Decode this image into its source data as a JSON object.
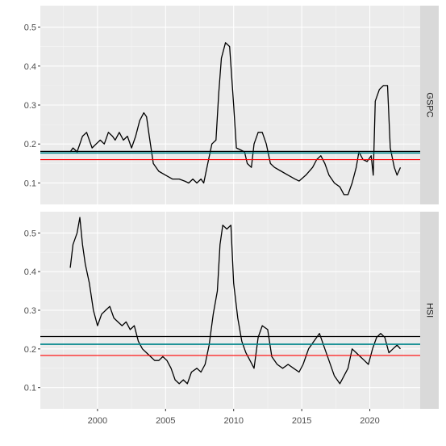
{
  "chart_data": {
    "type": "line",
    "x_ticks": [
      2000,
      2005,
      2010,
      2015,
      2020
    ],
    "y_ticks": [
      0.1,
      0.2,
      0.3,
      0.4,
      0.5
    ],
    "xlim": [
      1995.8,
      2023.7
    ],
    "ylim": [
      0.045,
      0.555
    ],
    "grid": true,
    "reference_line_colors": {
      "upper": "#000000",
      "middle": "#00868B",
      "lower": "#FF0000"
    },
    "panels": [
      {
        "strip": "GSPC",
        "reference_lines": {
          "upper": 0.181,
          "middle": 0.177,
          "lower": 0.16
        },
        "points": [
          [
            1998.0,
            0.18
          ],
          [
            1998.2,
            0.19
          ],
          [
            1998.5,
            0.18
          ],
          [
            1998.7,
            0.2
          ],
          [
            1998.9,
            0.22
          ],
          [
            1999.2,
            0.23
          ],
          [
            1999.6,
            0.19
          ],
          [
            1999.9,
            0.2
          ],
          [
            2000.2,
            0.21
          ],
          [
            2000.5,
            0.2
          ],
          [
            2000.8,
            0.23
          ],
          [
            2001.1,
            0.22
          ],
          [
            2001.3,
            0.21
          ],
          [
            2001.6,
            0.23
          ],
          [
            2001.9,
            0.21
          ],
          [
            2002.2,
            0.22
          ],
          [
            2002.5,
            0.19
          ],
          [
            2002.8,
            0.22
          ],
          [
            2003.1,
            0.26
          ],
          [
            2003.4,
            0.28
          ],
          [
            2003.6,
            0.27
          ],
          [
            2003.8,
            0.22
          ],
          [
            2004.1,
            0.15
          ],
          [
            2004.5,
            0.13
          ],
          [
            2005.0,
            0.12
          ],
          [
            2005.5,
            0.11
          ],
          [
            2006.0,
            0.11
          ],
          [
            2006.4,
            0.105
          ],
          [
            2006.7,
            0.1
          ],
          [
            2007.0,
            0.11
          ],
          [
            2007.3,
            0.1
          ],
          [
            2007.6,
            0.11
          ],
          [
            2007.8,
            0.1
          ],
          [
            2008.1,
            0.15
          ],
          [
            2008.4,
            0.2
          ],
          [
            2008.7,
            0.21
          ],
          [
            2008.9,
            0.33
          ],
          [
            2009.1,
            0.42
          ],
          [
            2009.4,
            0.46
          ],
          [
            2009.7,
            0.45
          ],
          [
            2010.0,
            0.3
          ],
          [
            2010.2,
            0.19
          ],
          [
            2010.5,
            0.185
          ],
          [
            2010.8,
            0.18
          ],
          [
            2011.0,
            0.15
          ],
          [
            2011.3,
            0.14
          ],
          [
            2011.5,
            0.2
          ],
          [
            2011.8,
            0.23
          ],
          [
            2012.1,
            0.23
          ],
          [
            2012.4,
            0.2
          ],
          [
            2012.7,
            0.15
          ],
          [
            2013.0,
            0.14
          ],
          [
            2013.5,
            0.13
          ],
          [
            2014.0,
            0.12
          ],
          [
            2014.5,
            0.11
          ],
          [
            2014.8,
            0.105
          ],
          [
            2015.3,
            0.12
          ],
          [
            2015.8,
            0.14
          ],
          [
            2016.1,
            0.16
          ],
          [
            2016.4,
            0.17
          ],
          [
            2016.7,
            0.15
          ],
          [
            2017.0,
            0.12
          ],
          [
            2017.4,
            0.1
          ],
          [
            2017.8,
            0.09
          ],
          [
            2018.1,
            0.07
          ],
          [
            2018.4,
            0.07
          ],
          [
            2018.7,
            0.1
          ],
          [
            2019.0,
            0.14
          ],
          [
            2019.2,
            0.18
          ],
          [
            2019.5,
            0.16
          ],
          [
            2019.8,
            0.155
          ],
          [
            2020.1,
            0.17
          ],
          [
            2020.25,
            0.12
          ],
          [
            2020.4,
            0.31
          ],
          [
            2020.7,
            0.34
          ],
          [
            2021.0,
            0.35
          ],
          [
            2021.3,
            0.35
          ],
          [
            2021.5,
            0.19
          ],
          [
            2021.8,
            0.14
          ],
          [
            2022.0,
            0.12
          ],
          [
            2022.25,
            0.14
          ]
        ]
      },
      {
        "strip": "HSI",
        "reference_lines": {
          "upper": 0.232,
          "middle": 0.212,
          "lower": 0.183
        },
        "points": [
          [
            1998.0,
            0.41
          ],
          [
            1998.2,
            0.47
          ],
          [
            1998.5,
            0.5
          ],
          [
            1998.7,
            0.54
          ],
          [
            1998.9,
            0.47
          ],
          [
            1999.1,
            0.42
          ],
          [
            1999.4,
            0.37
          ],
          [
            1999.7,
            0.3
          ],
          [
            2000.0,
            0.26
          ],
          [
            2000.3,
            0.29
          ],
          [
            2000.6,
            0.3
          ],
          [
            2000.9,
            0.31
          ],
          [
            2001.2,
            0.28
          ],
          [
            2001.5,
            0.27
          ],
          [
            2001.8,
            0.26
          ],
          [
            2002.1,
            0.27
          ],
          [
            2002.4,
            0.25
          ],
          [
            2002.7,
            0.26
          ],
          [
            2003.0,
            0.22
          ],
          [
            2003.3,
            0.2
          ],
          [
            2003.6,
            0.19
          ],
          [
            2003.9,
            0.18
          ],
          [
            2004.2,
            0.17
          ],
          [
            2004.5,
            0.17
          ],
          [
            2004.8,
            0.18
          ],
          [
            2005.1,
            0.17
          ],
          [
            2005.4,
            0.15
          ],
          [
            2005.7,
            0.12
          ],
          [
            2006.0,
            0.11
          ],
          [
            2006.3,
            0.12
          ],
          [
            2006.6,
            0.11
          ],
          [
            2006.9,
            0.14
          ],
          [
            2007.3,
            0.15
          ],
          [
            2007.6,
            0.14
          ],
          [
            2007.9,
            0.16
          ],
          [
            2008.2,
            0.21
          ],
          [
            2008.5,
            0.29
          ],
          [
            2008.8,
            0.35
          ],
          [
            2009.0,
            0.47
          ],
          [
            2009.2,
            0.52
          ],
          [
            2009.5,
            0.51
          ],
          [
            2009.8,
            0.52
          ],
          [
            2010.0,
            0.37
          ],
          [
            2010.3,
            0.28
          ],
          [
            2010.6,
            0.22
          ],
          [
            2010.9,
            0.19
          ],
          [
            2011.2,
            0.17
          ],
          [
            2011.5,
            0.15
          ],
          [
            2011.8,
            0.23
          ],
          [
            2012.1,
            0.26
          ],
          [
            2012.5,
            0.25
          ],
          [
            2012.8,
            0.18
          ],
          [
            2013.2,
            0.16
          ],
          [
            2013.6,
            0.15
          ],
          [
            2014.0,
            0.16
          ],
          [
            2014.4,
            0.15
          ],
          [
            2014.8,
            0.14
          ],
          [
            2015.1,
            0.16
          ],
          [
            2015.5,
            0.2
          ],
          [
            2015.9,
            0.22
          ],
          [
            2016.3,
            0.24
          ],
          [
            2016.7,
            0.2
          ],
          [
            2017.0,
            0.17
          ],
          [
            2017.4,
            0.13
          ],
          [
            2017.8,
            0.11
          ],
          [
            2018.1,
            0.13
          ],
          [
            2018.4,
            0.15
          ],
          [
            2018.7,
            0.2
          ],
          [
            2019.0,
            0.19
          ],
          [
            2019.3,
            0.18
          ],
          [
            2019.6,
            0.17
          ],
          [
            2019.9,
            0.16
          ],
          [
            2020.2,
            0.2
          ],
          [
            2020.5,
            0.23
          ],
          [
            2020.8,
            0.24
          ],
          [
            2021.1,
            0.23
          ],
          [
            2021.4,
            0.19
          ],
          [
            2021.7,
            0.2
          ],
          [
            2022.0,
            0.21
          ],
          [
            2022.25,
            0.2
          ]
        ]
      }
    ]
  }
}
